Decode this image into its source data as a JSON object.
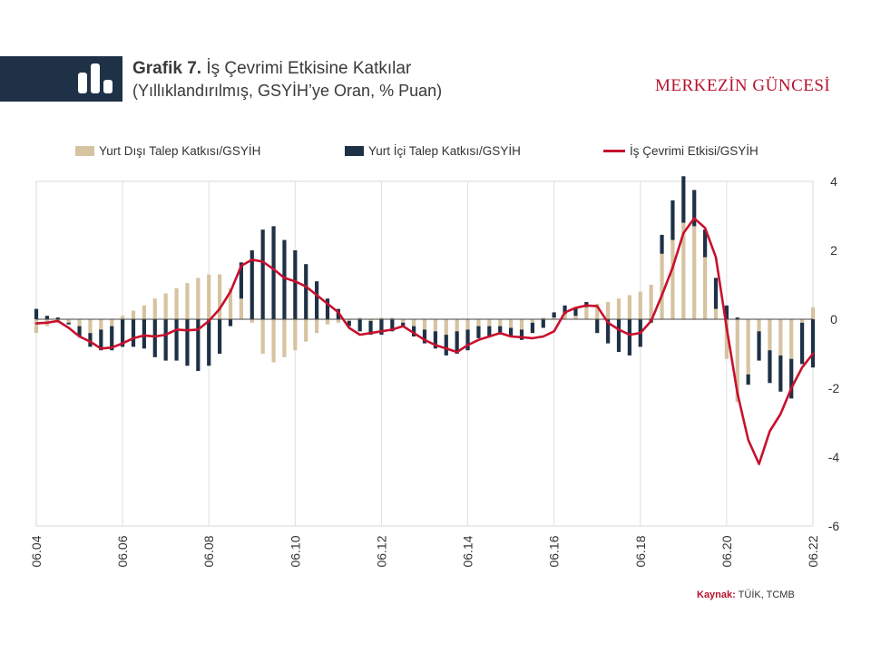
{
  "header": {
    "title_bold": "Grafik 7.",
    "title_rest": "İş Çevrimi Etkisine Katkılar",
    "subtitle": "(Yıllıklandırılmış,  GSYİH’ye Oran, % Puan)",
    "brand": "MERKEZİN GÜNCESİ",
    "icon": "bar-chart-icon"
  },
  "source": {
    "label": "Kaynak:",
    "text": "TÜİK, TCMB"
  },
  "colors": {
    "foreign": "#d6c3a0",
    "domestic": "#1e3146",
    "cycle": "#c8102e",
    "grid": "#e0e0e0"
  },
  "chart_data": {
    "type": "bar",
    "stacked": true,
    "x_ticks": [
      "06.04",
      "06.06",
      "06.08",
      "06.10",
      "06.12",
      "06.14",
      "06.16",
      "06.18",
      "06.20",
      "06.22"
    ],
    "y_ticks": [
      "4",
      "2",
      "0",
      "-2",
      "-4",
      "-6"
    ],
    "ylim": [
      -6,
      4
    ],
    "y_axis_side": "right",
    "grid": "vertical",
    "legend_position": "top",
    "series": [
      {
        "name": "Yurt Dışı Talep Katkısı/GSYİH",
        "kind": "bar",
        "values": [
          -0.4,
          -0.2,
          -0.1,
          -0.1,
          -0.2,
          -0.4,
          -0.3,
          -0.2,
          0.1,
          0.25,
          0.4,
          0.6,
          0.75,
          0.9,
          1.05,
          1.2,
          1.3,
          1.3,
          0.9,
          0.6,
          -0.1,
          -1.0,
          -1.25,
          -1.1,
          -0.9,
          -0.65,
          -0.4,
          -0.15,
          -0.1,
          -0.05,
          0.05,
          -0.05,
          0.05,
          0.05,
          -0.1,
          -0.2,
          -0.3,
          -0.35,
          -0.45,
          -0.35,
          -0.3,
          -0.2,
          -0.2,
          -0.2,
          -0.25,
          -0.3,
          -0.1,
          0.05,
          0.05,
          0.15,
          0.1,
          0.35,
          0.45,
          0.5,
          0.6,
          0.7,
          0.8,
          1.0,
          1.9,
          2.3,
          2.8,
          2.7,
          1.8,
          0.3,
          -1.15,
          -2.4,
          -1.6,
          -0.35,
          -0.9,
          -1.05,
          -1.15,
          -0.1,
          0.35
        ]
      },
      {
        "name": "Yurt İçi Talep Katkısı/GSYİH",
        "kind": "bar",
        "values": [
          0.3,
          0.1,
          0.05,
          -0.05,
          -0.3,
          -0.4,
          -0.6,
          -0.7,
          -0.8,
          -0.8,
          -0.85,
          -1.1,
          -1.2,
          -1.2,
          -1.35,
          -1.5,
          -1.35,
          -1.0,
          -0.2,
          1.05,
          2.0,
          2.6,
          2.7,
          2.3,
          2.0,
          1.6,
          1.1,
          0.6,
          0.3,
          -0.15,
          -0.35,
          -0.4,
          -0.45,
          -0.35,
          -0.1,
          -0.3,
          -0.4,
          -0.5,
          -0.6,
          -0.65,
          -0.6,
          -0.35,
          -0.3,
          -0.25,
          -0.25,
          -0.3,
          -0.3,
          -0.25,
          0.15,
          0.25,
          0.25,
          0.15,
          -0.4,
          -0.7,
          -0.95,
          -1.05,
          -0.8,
          -0.1,
          0.55,
          1.15,
          1.35,
          1.05,
          0.8,
          0.9,
          0.4,
          0.05,
          -0.3,
          -0.85,
          -0.95,
          -1.05,
          -1.15,
          -1.2,
          -1.4
        ]
      },
      {
        "name": "İş Çevrimi Etkisi/GSYİH",
        "kind": "line",
        "values": [
          -0.12,
          -0.1,
          -0.05,
          -0.25,
          -0.5,
          -0.65,
          -0.85,
          -0.82,
          -0.7,
          -0.55,
          -0.47,
          -0.5,
          -0.45,
          -0.3,
          -0.32,
          -0.3,
          -0.05,
          0.3,
          0.8,
          1.55,
          1.73,
          1.67,
          1.45,
          1.2,
          1.1,
          0.95,
          0.7,
          0.45,
          0.2,
          -0.25,
          -0.45,
          -0.4,
          -0.35,
          -0.3,
          -0.2,
          -0.4,
          -0.6,
          -0.75,
          -0.85,
          -0.95,
          -0.75,
          -0.6,
          -0.5,
          -0.4,
          -0.5,
          -0.52,
          -0.55,
          -0.5,
          -0.35,
          0.2,
          0.33,
          0.4,
          0.38,
          -0.1,
          -0.3,
          -0.45,
          -0.4,
          -0.05,
          0.7,
          1.5,
          2.5,
          2.93,
          2.65,
          1.8,
          -0.25,
          -2.15,
          -3.5,
          -4.2,
          -3.25,
          -2.75,
          -2.0,
          -1.4,
          -1.0
        ]
      }
    ]
  }
}
